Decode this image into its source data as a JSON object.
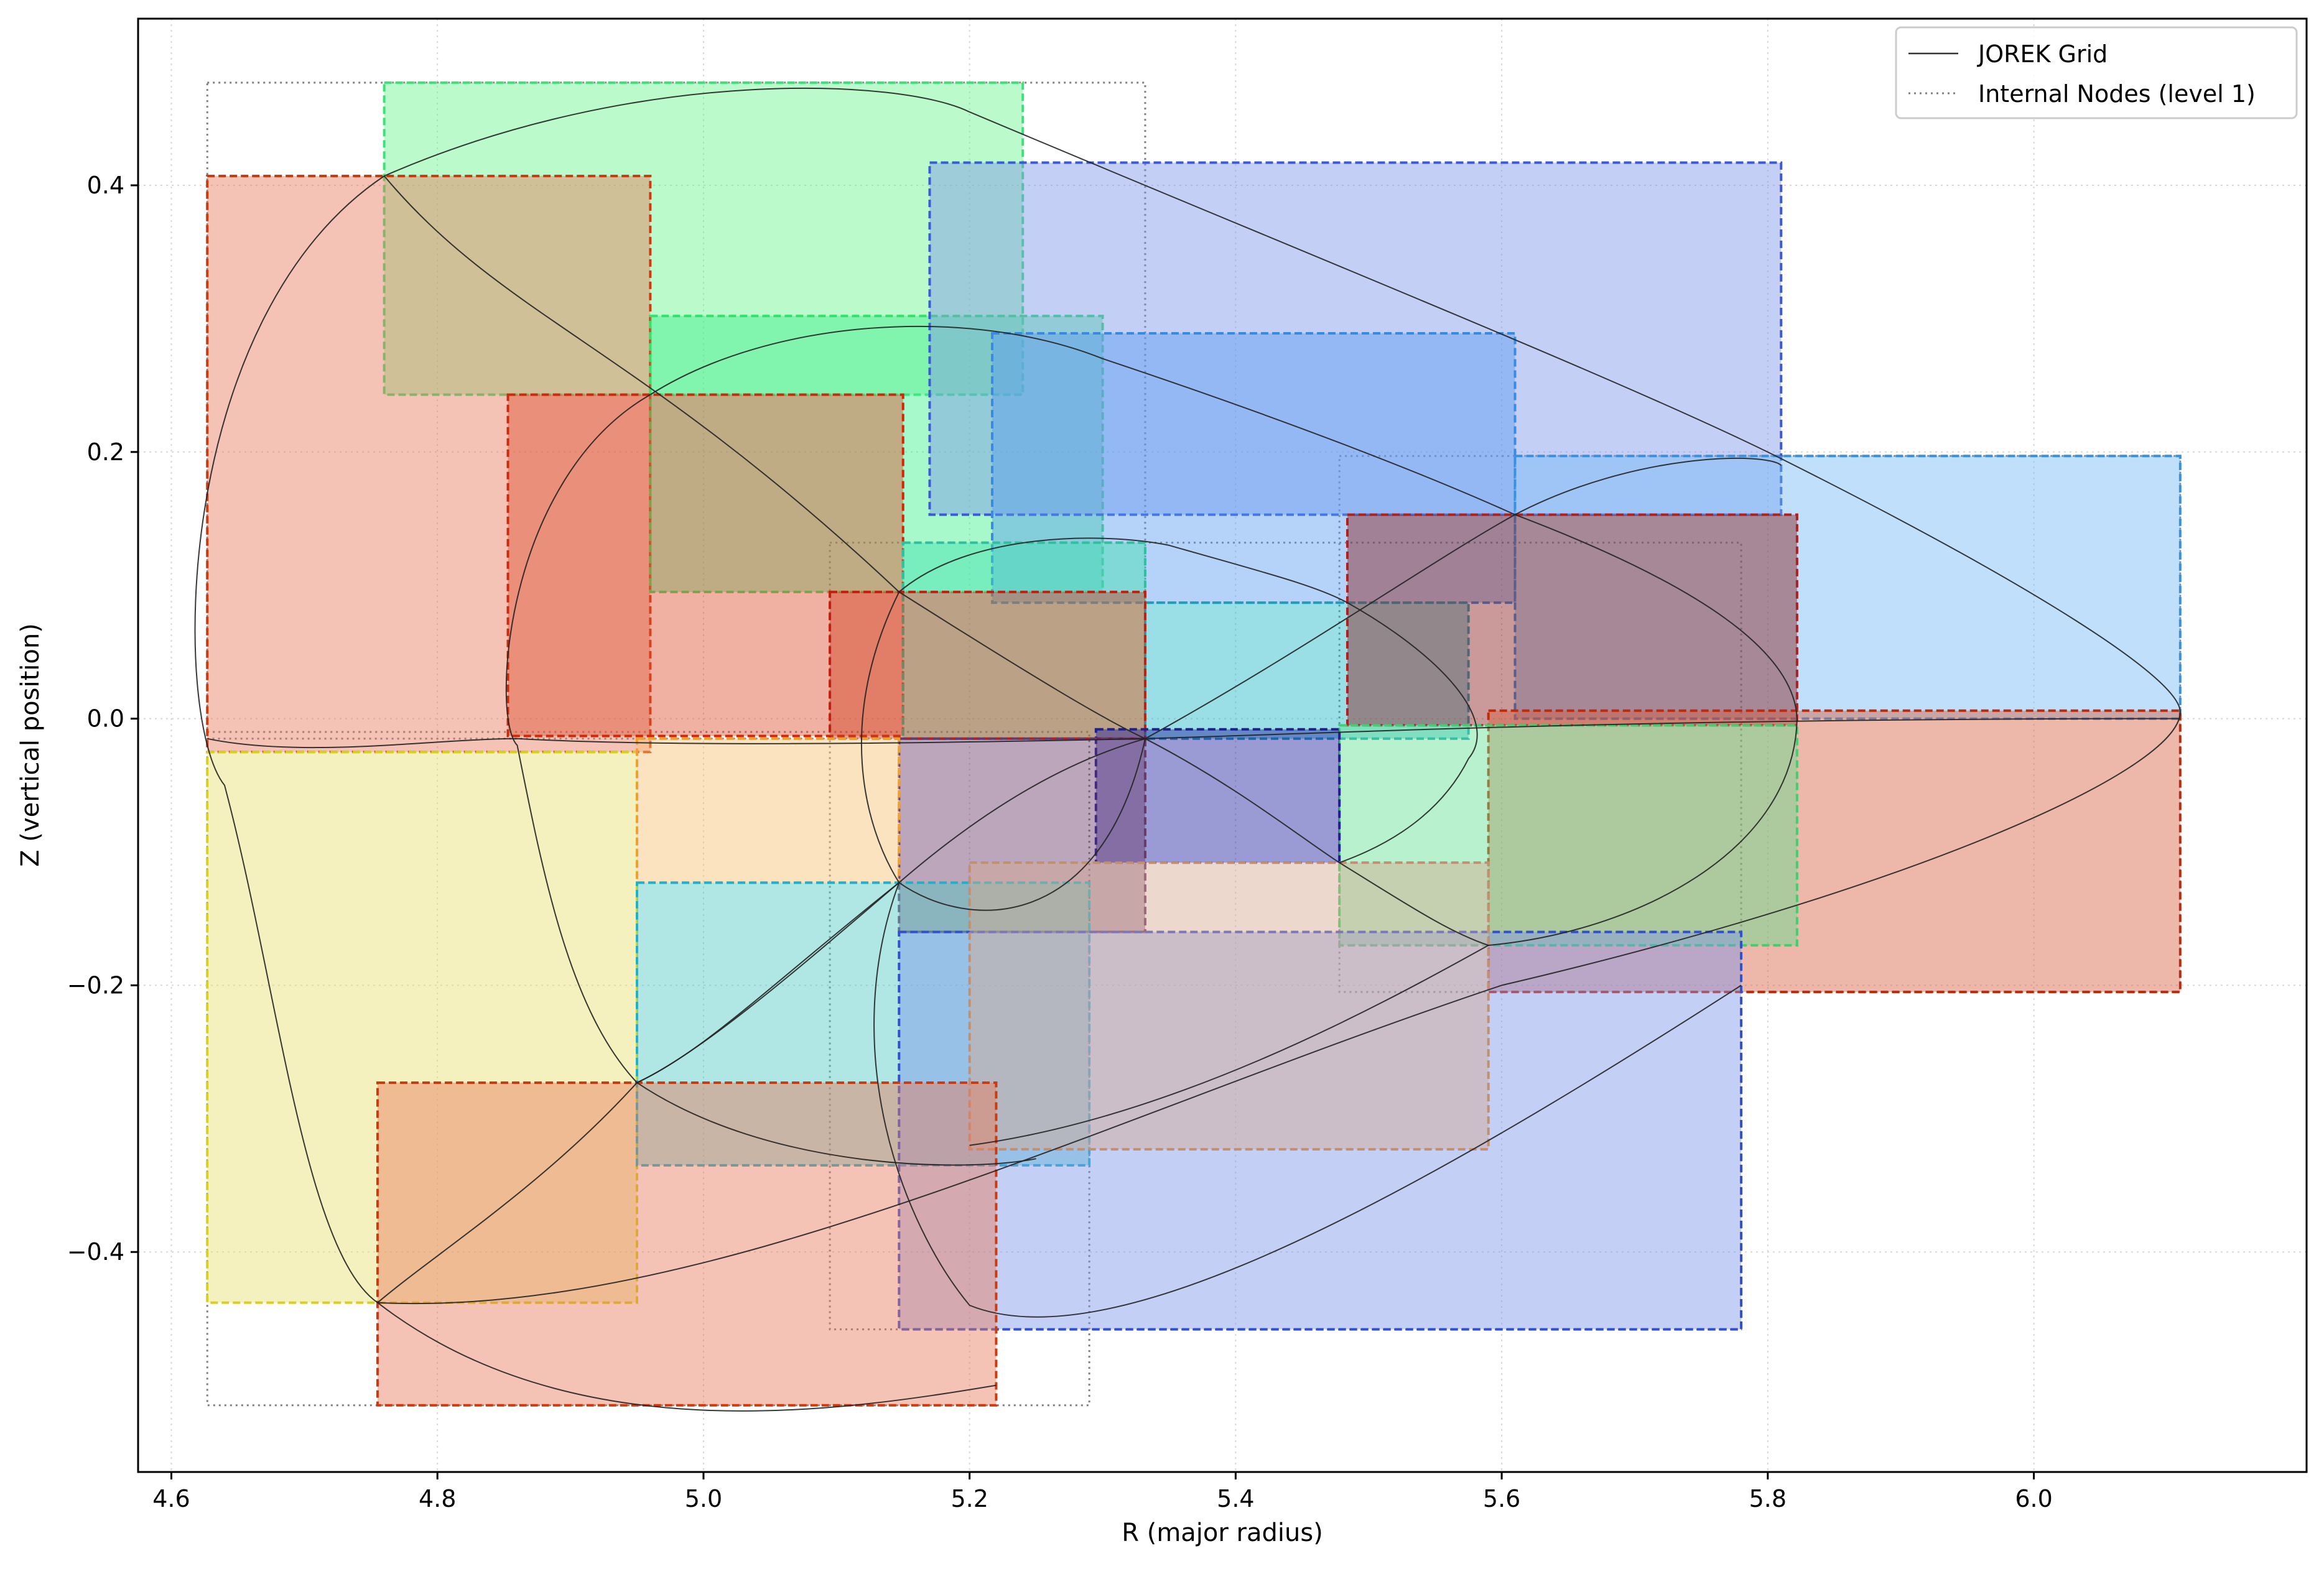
{
  "chart_data": {
    "type": "scatter",
    "xlabel": "R (major radius)",
    "ylabel": "Z (vertical position)",
    "xlim": [
      4.575,
      6.205
    ],
    "ylim": [
      -0.565,
      0.525
    ],
    "xticks": [
      4.6,
      4.8,
      5.0,
      5.2,
      5.4,
      5.6,
      5.8,
      6.0
    ],
    "yticks": [
      -0.4,
      -0.2,
      0.0,
      0.2,
      0.4
    ],
    "xtick_labels": [
      "4.6",
      "4.8",
      "5.0",
      "5.2",
      "5.4",
      "5.6",
      "5.8",
      "6.0"
    ],
    "ytick_labels": [
      "−0.4",
      "−0.2",
      "0.0",
      "0.2",
      "0.4"
    ],
    "grid": true,
    "legend_position": "top-right",
    "legend": [
      {
        "label": "JOREK Grid",
        "style": "solid",
        "color": "#333333"
      },
      {
        "label": "Internal Nodes (level 1)",
        "style": "dotted",
        "color": "#808080"
      }
    ],
    "internal_nodes": [
      {
        "r0": 4.627,
        "r1": 5.332,
        "z0": -0.015,
        "z1": 0.477
      },
      {
        "r0": 4.627,
        "r1": 5.29,
        "z0": -0.515,
        "z1": -0.01
      },
      {
        "r0": 5.095,
        "r1": 5.78,
        "z0": -0.458,
        "z1": 0.132
      },
      {
        "r0": 5.478,
        "r1": 6.11,
        "z0": -0.205,
        "z1": 0.197
      }
    ],
    "boxes": [
      {
        "r0": 4.76,
        "r1": 5.24,
        "z0": 0.243,
        "z1": 0.477,
        "fill": "#69f58a",
        "edge": "#3fe07a"
      },
      {
        "r0": 4.627,
        "r1": 4.96,
        "z0": -0.025,
        "z1": 0.407,
        "fill": "#e87a5a",
        "edge": "#cc3a10"
      },
      {
        "r0": 4.96,
        "r1": 5.3,
        "z0": 0.095,
        "z1": 0.302,
        "fill": "#3cf08c",
        "edge": "#38e06a"
      },
      {
        "r0": 4.853,
        "r1": 5.15,
        "z0": -0.013,
        "z1": 0.243,
        "fill": "#dd5030",
        "edge": "#cc2a0a"
      },
      {
        "r0": 5.17,
        "r1": 5.81,
        "z0": 0.153,
        "z1": 0.417,
        "fill": "#7c94ec",
        "edge": "#3a5ad8"
      },
      {
        "r0": 5.217,
        "r1": 5.61,
        "z0": 0.087,
        "z1": 0.289,
        "fill": "#5a9cf0",
        "edge": "#3a8ae0"
      },
      {
        "r0": 5.61,
        "r1": 6.11,
        "z0": 0.0,
        "z1": 0.197,
        "fill": "#72b8f4",
        "edge": "#3a90e0"
      },
      {
        "r0": 5.15,
        "r1": 5.332,
        "z0": -0.015,
        "z1": 0.132,
        "fill": "#40e0b0",
        "edge": "#30c0a0"
      },
      {
        "r0": 5.332,
        "r1": 5.575,
        "z0": -0.015,
        "z1": 0.087,
        "fill": "#20b8c8",
        "edge": "#20a0b8"
      },
      {
        "r0": 5.095,
        "r1": 5.332,
        "z0": -0.015,
        "z1": 0.095,
        "fill": "#d04020",
        "edge": "#c02010"
      },
      {
        "r0": 5.484,
        "r1": 5.822,
        "z0": -0.005,
        "z1": 0.153,
        "fill": "#8a2020",
        "edge": "#b02020"
      },
      {
        "r0": 5.59,
        "r1": 6.11,
        "z0": -0.205,
        "z1": 0.006,
        "fill": "#d86040",
        "edge": "#c02a0a"
      },
      {
        "r0": 5.478,
        "r1": 5.822,
        "z0": -0.17,
        "z1": -0.005,
        "fill": "#60e090",
        "edge": "#40d070"
      },
      {
        "r0": 5.295,
        "r1": 5.478,
        "z0": -0.108,
        "z1": -0.008,
        "fill": "#2020a0",
        "edge": "#202090"
      },
      {
        "r0": 5.147,
        "r1": 5.332,
        "z0": -0.16,
        "z1": -0.015,
        "fill": "#6a3a6a",
        "edge": "#6a3a6a"
      },
      {
        "r0": 4.627,
        "r1": 4.95,
        "z0": -0.438,
        "z1": -0.025,
        "fill": "#e8e070",
        "edge": "#d8d020"
      },
      {
        "r0": 4.95,
        "r1": 5.147,
        "z0": -0.123,
        "z1": -0.015,
        "fill": "#f8c070",
        "edge": "#f0a030"
      },
      {
        "r0": 4.95,
        "r1": 5.29,
        "z0": -0.335,
        "z1": -0.123,
        "fill": "#50c8c0",
        "edge": "#20b0c8"
      },
      {
        "r0": 5.147,
        "r1": 5.78,
        "z0": -0.458,
        "z1": -0.16,
        "fill": "#7c94ec",
        "edge": "#3050d0"
      },
      {
        "r0": 5.2,
        "r1": 5.59,
        "z0": -0.323,
        "z1": -0.108,
        "fill": "#d8a890",
        "edge": "#c09070"
      },
      {
        "r0": 4.755,
        "r1": 5.22,
        "z0": -0.515,
        "z1": -0.273,
        "fill": "#e87a5a",
        "edge": "#cc3a10"
      }
    ],
    "grid_nodes": [
      [
        4.76,
        0.407
      ],
      [
        4.96,
        0.243
      ],
      [
        5.147,
        0.095
      ],
      [
        5.332,
        -0.015
      ],
      [
        5.61,
        0.153
      ],
      [
        5.484,
        0.087
      ],
      [
        5.478,
        -0.108
      ],
      [
        5.59,
        -0.17
      ],
      [
        5.147,
        -0.123
      ],
      [
        4.95,
        -0.273
      ],
      [
        4.755,
        -0.438
      ]
    ]
  }
}
